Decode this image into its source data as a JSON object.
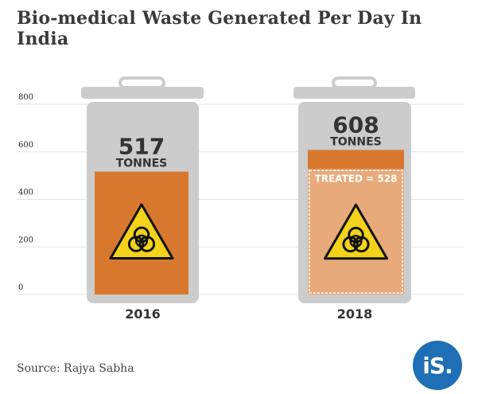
{
  "title": "Bio-medical Waste Generated Per Day In India",
  "source": "Source: Rajya Sabha",
  "logo_text": "iS.",
  "colors": {
    "bin": "#cccccc",
    "bar_2016": "#d8782f",
    "bar_2018_total": "#d8782f",
    "bar_2018_treated": "#e8aa7a",
    "hazard_yellow": "#f2d21b",
    "logo_blue": "#1e6fb5"
  },
  "icons": [
    "biohazard-icon",
    "trash-bin-icon"
  ],
  "chart_data": {
    "type": "bar",
    "title": "Bio-medical Waste Generated Per Day In India",
    "categories": [
      "2016",
      "2018"
    ],
    "series": [
      {
        "values": [
          517,
          608
        ]
      },
      {
        "values": [
          null,
          528
        ]
      }
    ],
    "value_labels": [
      {
        "value": "517",
        "unit": "TONNES"
      },
      {
        "value": "608",
        "unit": "TONNES"
      }
    ],
    "treated_label": "TREATED = 528",
    "yticks": [
      0,
      200,
      400,
      600,
      800
    ],
    "ylim": [
      0,
      800
    ],
    "grid": true,
    "xlabel": "",
    "ylabel": ""
  }
}
